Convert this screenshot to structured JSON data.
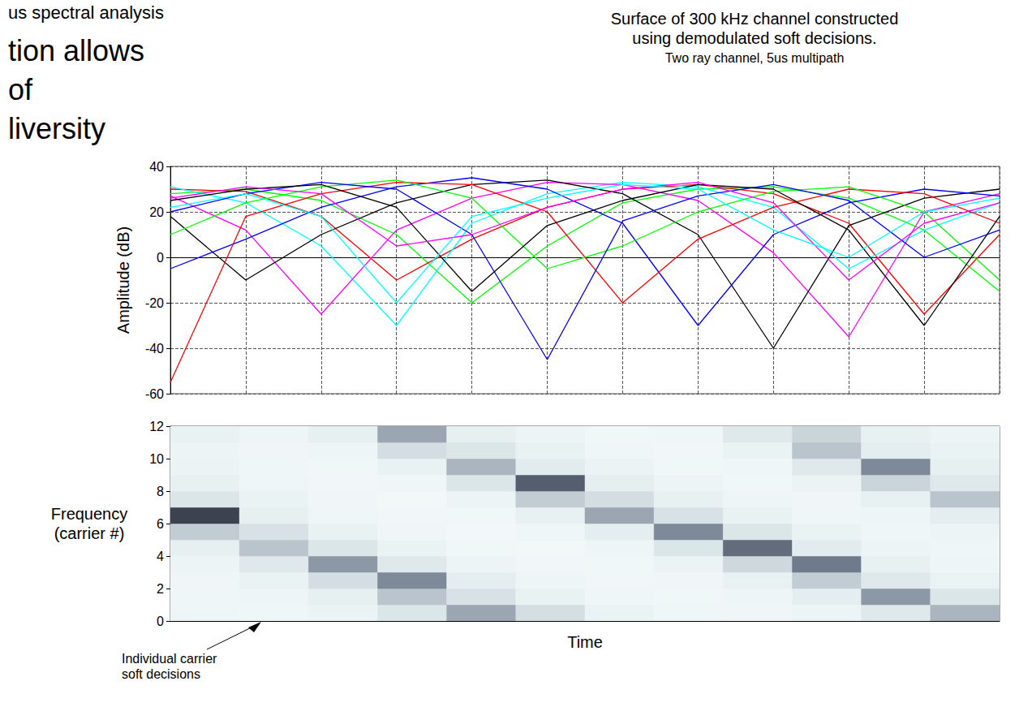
{
  "chart_data": {
    "type": "surface",
    "title": "Surface of 300 kHz channel constructed\nusing demodulated soft decisions.",
    "subtitle": "Two ray channel, 5us multipath",
    "slide_text": [
      "us spectral analysis",
      "tion allows",
      "of",
      "liversity"
    ],
    "annotations": [
      "Individual carrier\nsoft decisions"
    ],
    "xlabel": "Time",
    "ylabel": "Amplitude (dB)",
    "flabel": "Frequency\n(carrier #)",
    "ylim": [
      -60,
      40
    ],
    "yticks": [
      -60,
      -40,
      -20,
      0,
      20,
      40
    ],
    "flim": [
      0,
      12
    ],
    "fticks": [
      0,
      2,
      4,
      6,
      8,
      10,
      12
    ],
    "grid": true,
    "categories": [
      null,
      null,
      null,
      null,
      null,
      null,
      null,
      null,
      null,
      null,
      null,
      null
    ],
    "series": [
      {
        "carrier": 1,
        "color": "#00ff00",
        "values": [
          28,
          30,
          25,
          10,
          -20,
          5,
          24,
          30,
          31,
          26,
          12,
          -15
        ]
      },
      {
        "carrier": 2,
        "color": "#ff0000",
        "values": [
          30,
          29,
          18,
          -10,
          8,
          22,
          30,
          32,
          28,
          15,
          -25,
          10
        ]
      },
      {
        "carrier": 3,
        "color": "#00ffff",
        "values": [
          31,
          24,
          5,
          -30,
          15,
          28,
          33,
          31,
          22,
          -5,
          12,
          24
        ]
      },
      {
        "carrier": 4,
        "color": "#ff00ff",
        "values": [
          27,
          12,
          -25,
          12,
          26,
          33,
          32,
          25,
          2,
          -35,
          20,
          28
        ]
      },
      {
        "carrier": 5,
        "color": "#000000",
        "values": [
          18,
          -10,
          10,
          24,
          32,
          34,
          28,
          10,
          -40,
          14,
          26,
          30
        ]
      },
      {
        "carrier": 6,
        "color": "#0000ff",
        "values": [
          -5,
          8,
          22,
          31,
          35,
          30,
          15,
          -30,
          10,
          24,
          30,
          27
        ]
      },
      {
        "carrier": 7,
        "color": "#ff0000",
        "values": [
          -55,
          18,
          28,
          33,
          32,
          20,
          -20,
          8,
          22,
          30,
          28,
          15
        ]
      },
      {
        "carrier": 8,
        "color": "#00ff00",
        "values": [
          10,
          24,
          31,
          34,
          26,
          -5,
          5,
          20,
          29,
          31,
          20,
          -10
        ]
      },
      {
        "carrier": 9,
        "color": "#0000ff",
        "values": [
          20,
          28,
          33,
          30,
          10,
          -45,
          16,
          27,
          32,
          25,
          0,
          12
        ]
      },
      {
        "carrier": 10,
        "color": "#000000",
        "values": [
          25,
          30,
          32,
          22,
          -15,
          14,
          25,
          32,
          30,
          12,
          -30,
          18
        ]
      },
      {
        "carrier": 11,
        "color": "#ff00ff",
        "values": [
          26,
          31,
          28,
          5,
          10,
          22,
          30,
          33,
          24,
          -10,
          15,
          24
        ]
      },
      {
        "carrier": 12,
        "color": "#00ffff",
        "values": [
          22,
          28,
          18,
          -20,
          18,
          26,
          32,
          30,
          12,
          0,
          20,
          26
        ]
      }
    ]
  }
}
